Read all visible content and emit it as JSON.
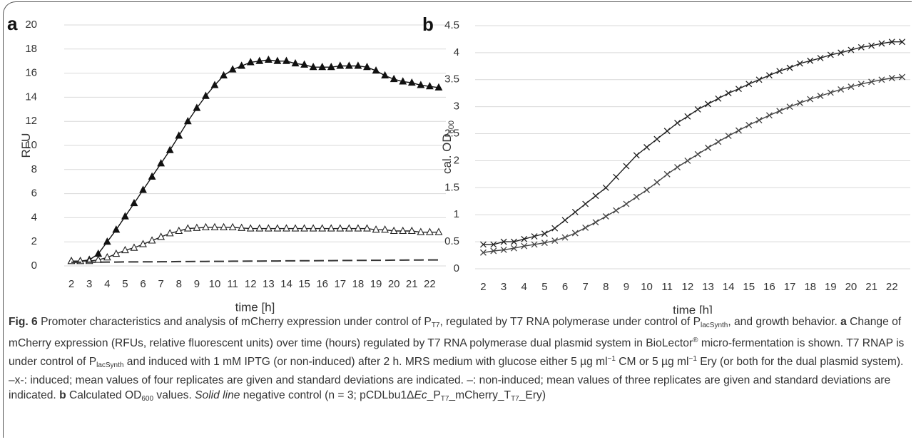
{
  "chart_data": [
    {
      "type": "line",
      "panel": "a",
      "y_label": "RFU",
      "x_label": "time [h]",
      "xlim": [
        1.6,
        22.9
      ],
      "xticks": [
        2,
        3,
        4,
        5,
        6,
        7,
        8,
        9,
        10,
        11,
        12,
        13,
        14,
        15,
        16,
        17,
        18,
        19,
        20,
        21,
        22
      ],
      "ylim": [
        0,
        20
      ],
      "yticks": [
        0,
        2,
        4,
        6,
        8,
        10,
        12,
        14,
        16,
        18,
        20
      ],
      "grid": true,
      "x": [
        2,
        2.5,
        3,
        3.5,
        4,
        4.5,
        5,
        5.5,
        6,
        6.5,
        7,
        7.5,
        8,
        8.5,
        9,
        9.5,
        10,
        10.5,
        11,
        11.5,
        12,
        12.5,
        13,
        13.5,
        14,
        14.5,
        15,
        15.5,
        16,
        16.5,
        17,
        17.5,
        18,
        18.5,
        19,
        19.5,
        20,
        20.5,
        21,
        21.5,
        22,
        22.5
      ],
      "series": [
        {
          "color": "#111111",
          "marker": "triangle-filled",
          "values": [
            0.4,
            0.4,
            0.5,
            1.0,
            2.0,
            3.0,
            4.1,
            5.2,
            6.3,
            7.4,
            8.5,
            9.6,
            10.8,
            12.0,
            13.1,
            14.1,
            15.0,
            15.8,
            16.3,
            16.6,
            16.9,
            17.0,
            17.1,
            17.0,
            17.0,
            16.8,
            16.7,
            16.5,
            16.5,
            16.5,
            16.6,
            16.6,
            16.6,
            16.5,
            16.2,
            15.8,
            15.5,
            15.3,
            15.2,
            15.0,
            14.9,
            14.8
          ]
        },
        {
          "color": "#222222",
          "marker": "triangle-open",
          "values": [
            0.4,
            0.4,
            0.4,
            0.5,
            0.7,
            1.0,
            1.3,
            1.5,
            1.8,
            2.1,
            2.4,
            2.7,
            2.9,
            3.1,
            3.15,
            3.2,
            3.2,
            3.2,
            3.2,
            3.15,
            3.1,
            3.1,
            3.1,
            3.1,
            3.1,
            3.1,
            3.1,
            3.1,
            3.1,
            3.1,
            3.1,
            3.1,
            3.1,
            3.1,
            3.0,
            3.0,
            2.9,
            2.9,
            2.9,
            2.8,
            2.8,
            2.8
          ]
        },
        {
          "color": "#333333",
          "marker": "none",
          "dash": true,
          "values": [
            0.3,
            0.3,
            0.31,
            0.31,
            0.32,
            0.32,
            0.33,
            0.33,
            0.34,
            0.34,
            0.35,
            0.35,
            0.36,
            0.36,
            0.37,
            0.37,
            0.38,
            0.38,
            0.39,
            0.39,
            0.4,
            0.4,
            0.41,
            0.41,
            0.42,
            0.42,
            0.43,
            0.43,
            0.44,
            0.44,
            0.45,
            0.45,
            0.46,
            0.46,
            0.47,
            0.47,
            0.48,
            0.48,
            0.49,
            0.49,
            0.5,
            0.5
          ]
        }
      ]
    },
    {
      "type": "line",
      "panel": "b",
      "y_label": "cal. OD",
      "y_label_sub": "600",
      "x_label": "time [h]",
      "xlim": [
        1.6,
        22.9
      ],
      "xticks": [
        2,
        3,
        4,
        5,
        6,
        7,
        8,
        9,
        10,
        11,
        12,
        13,
        14,
        15,
        16,
        17,
        18,
        19,
        20,
        21,
        22
      ],
      "ylim": [
        0,
        4.5
      ],
      "yticks": [
        0,
        0.5,
        1,
        1.5,
        2,
        2.5,
        3,
        3.5,
        4,
        4.5
      ],
      "grid": true,
      "x": [
        2,
        2.5,
        3,
        3.5,
        4,
        4.5,
        5,
        5.5,
        6,
        6.5,
        7,
        7.5,
        8,
        8.5,
        9,
        9.5,
        10,
        10.5,
        11,
        11.5,
        12,
        12.5,
        13,
        13.5,
        14,
        14.5,
        15,
        15.5,
        16,
        16.5,
        17,
        17.5,
        18,
        18.5,
        19,
        19.5,
        20,
        20.5,
        21,
        21.5,
        22,
        22.5
      ],
      "series": [
        {
          "color": "#222222",
          "marker": "x",
          "values": [
            0.45,
            0.45,
            0.5,
            0.5,
            0.55,
            0.6,
            0.65,
            0.75,
            0.9,
            1.05,
            1.2,
            1.35,
            1.5,
            1.7,
            1.9,
            2.1,
            2.25,
            2.4,
            2.55,
            2.7,
            2.82,
            2.95,
            3.05,
            3.15,
            3.25,
            3.33,
            3.42,
            3.5,
            3.58,
            3.66,
            3.72,
            3.8,
            3.85,
            3.9,
            3.96,
            4.0,
            4.05,
            4.1,
            4.13,
            4.17,
            4.2,
            4.2
          ]
        },
        {
          "color": "#444444",
          "marker": "x",
          "values": [
            0.3,
            0.33,
            0.35,
            0.38,
            0.42,
            0.45,
            0.48,
            0.52,
            0.58,
            0.66,
            0.76,
            0.86,
            0.97,
            1.08,
            1.2,
            1.33,
            1.46,
            1.6,
            1.75,
            1.88,
            2.0,
            2.12,
            2.24,
            2.35,
            2.46,
            2.56,
            2.66,
            2.75,
            2.84,
            2.92,
            3.0,
            3.07,
            3.14,
            3.2,
            3.26,
            3.32,
            3.37,
            3.42,
            3.46,
            3.5,
            3.53,
            3.55
          ]
        }
      ]
    }
  ],
  "caption": {
    "runs": [
      {
        "text": "Fig. 6",
        "style": "b"
      },
      {
        "text": "  Promoter characteristics and analysis of mCherry expression under control of P"
      },
      {
        "text": "T7",
        "style": "sub"
      },
      {
        "text": ", regulated by T7 RNA polymerase under control of P"
      },
      {
        "text": "lacSynth",
        "style": "sub"
      },
      {
        "text": ", and growth behavior. "
      },
      {
        "text": "a",
        "style": "b"
      },
      {
        "text": " Change of mCherry expression (RFUs, relative fluorescent units) over time (hours) regulated by T7 RNA polymerase dual plasmid system in BioLector"
      },
      {
        "text": "®",
        "style": "sup"
      },
      {
        "text": " micro-fermentation is shown. T7 RNAP is under control of P"
      },
      {
        "text": "lacSynth",
        "style": "sub"
      },
      {
        "text": " and induced with 1 mM IPTG (or non-induced) after 2 h. MRS medium with glucose either 5 µg ml"
      },
      {
        "text": "−1",
        "style": "sup"
      },
      {
        "text": " CM or 5 µg ml"
      },
      {
        "text": "−1",
        "style": "sup"
      },
      {
        "text": " Ery (or both for the dual plasmid system). –x-: induced; mean values of four replicates are given and standard deviations are indicated. –: non-induced; mean values of three replicates are given and standard deviations are indicated. "
      },
      {
        "text": "b",
        "style": "b"
      },
      {
        "text": " Calculated OD"
      },
      {
        "text": "600",
        "style": "sub"
      },
      {
        "text": " values. "
      },
      {
        "text": "Solid line",
        "style": "i"
      },
      {
        "text": " negative control (n = 3; pCDLbu1Δ"
      },
      {
        "text": "Ec",
        "style": "i"
      },
      {
        "text": "_P"
      },
      {
        "text": "T7",
        "style": "sub"
      },
      {
        "text": "_mCherry_T"
      },
      {
        "text": "T7",
        "style": "sub"
      },
      {
        "text": "_Ery)"
      }
    ]
  }
}
